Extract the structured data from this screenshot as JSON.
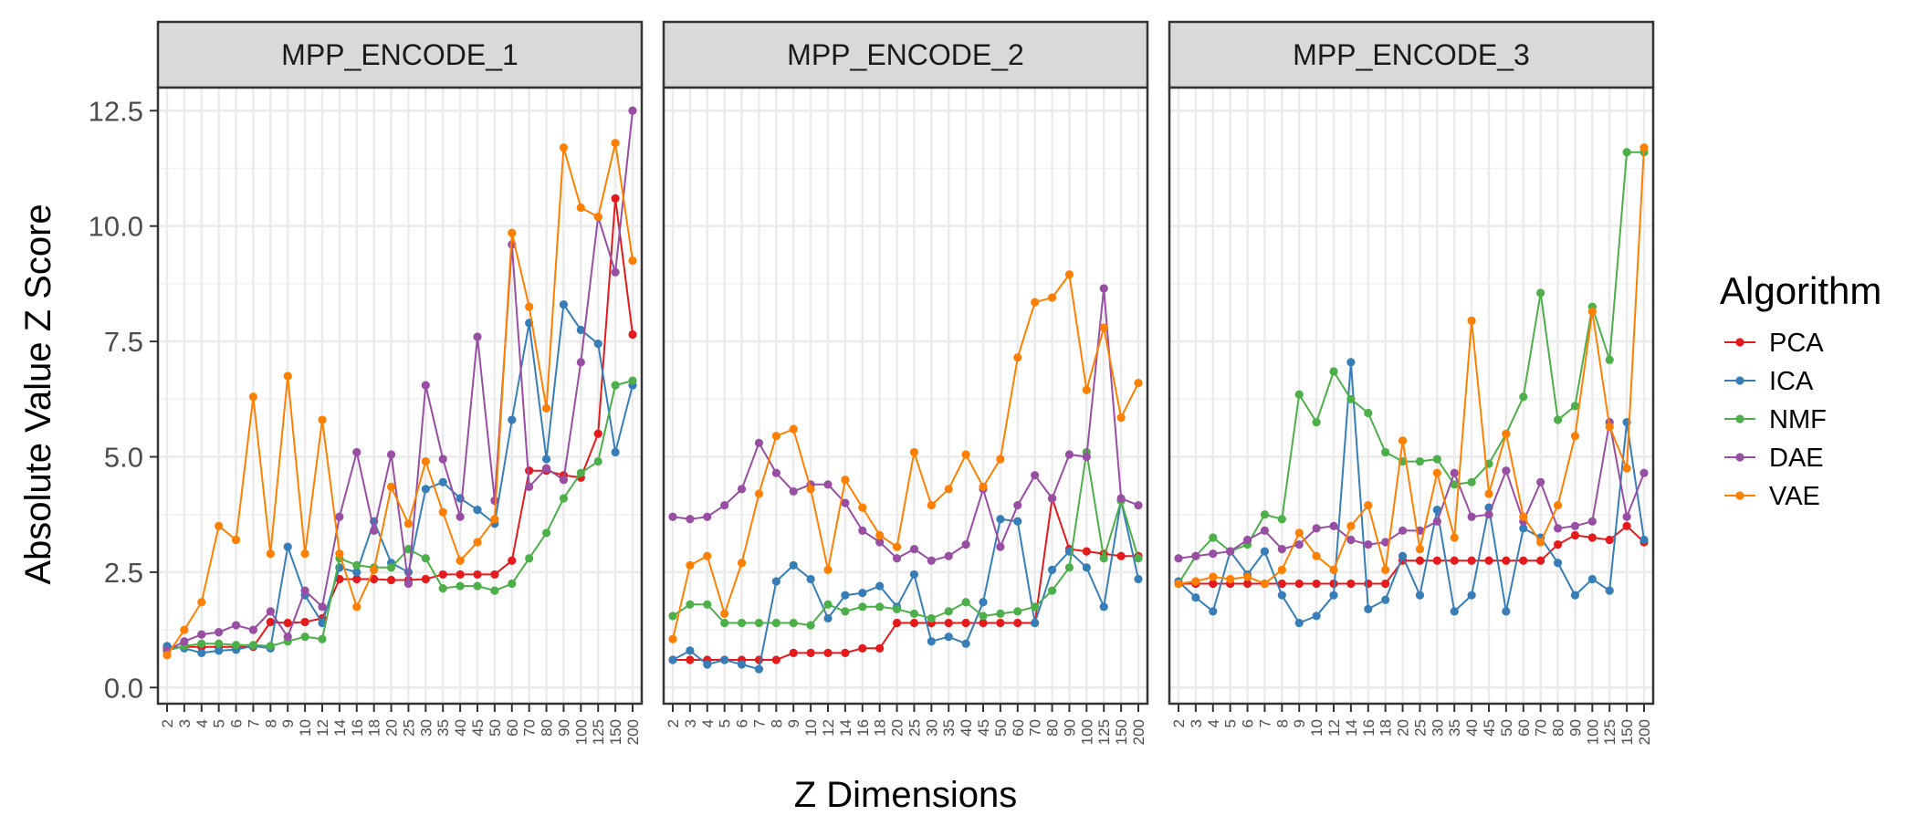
{
  "chart_data": {
    "type": "line",
    "ylabel": "Absolute Value Z Score",
    "xlabel": "Z Dimensions",
    "ylim": [
      0,
      12.5
    ],
    "yticks": [
      0.0,
      2.5,
      5.0,
      7.5,
      10.0,
      12.5
    ],
    "ytick_labels": [
      "0.0",
      "2.5",
      "5.0",
      "7.5",
      "10.0",
      "12.5"
    ],
    "grid": true,
    "legend_position": "right",
    "legend_title": "Algorithm",
    "categories": [
      "2",
      "3",
      "4",
      "5",
      "6",
      "7",
      "8",
      "9",
      "10",
      "12",
      "14",
      "16",
      "18",
      "20",
      "25",
      "30",
      "35",
      "40",
      "45",
      "50",
      "60",
      "70",
      "80",
      "90",
      "100",
      "125",
      "150",
      "200"
    ],
    "series_names": [
      "PCA",
      "ICA",
      "NMF",
      "DAE",
      "VAE"
    ],
    "series_colors": {
      "PCA": "#E41A1C",
      "ICA": "#377EB8",
      "NMF": "#4DAF4A",
      "DAE": "#984EA3",
      "VAE": "#FF7F00"
    },
    "panels": [
      {
        "title": "MPP_ENCODE_1",
        "series": [
          {
            "name": "PCA",
            "values": [
              0.85,
              0.88,
              0.88,
              0.88,
              0.88,
              0.88,
              1.42,
              1.4,
              1.42,
              1.5,
              2.35,
              2.35,
              2.35,
              2.33,
              2.33,
              2.35,
              2.45,
              2.45,
              2.45,
              2.45,
              2.75,
              4.7,
              4.7,
              4.6,
              4.55,
              5.5,
              10.6,
              7.65
            ]
          },
          {
            "name": "ICA",
            "values": [
              0.9,
              0.85,
              0.75,
              0.8,
              0.82,
              0.9,
              0.85,
              3.05,
              2.0,
              1.4,
              2.6,
              2.5,
              3.6,
              2.7,
              2.5,
              4.3,
              4.45,
              4.1,
              3.85,
              3.55,
              5.8,
              7.9,
              4.95,
              8.3,
              7.75,
              7.45,
              5.1,
              6.55
            ]
          },
          {
            "name": "NMF",
            "values": [
              0.8,
              0.9,
              0.95,
              0.95,
              0.92,
              0.92,
              0.9,
              1.0,
              1.1,
              1.05,
              2.8,
              2.65,
              2.6,
              2.6,
              3.0,
              2.8,
              2.15,
              2.2,
              2.2,
              2.1,
              2.25,
              2.8,
              3.35,
              4.1,
              4.65,
              4.9,
              6.55,
              6.65
            ]
          },
          {
            "name": "DAE",
            "values": [
              0.8,
              1.0,
              1.15,
              1.2,
              1.35,
              1.25,
              1.65,
              1.1,
              2.1,
              1.75,
              3.7,
              5.1,
              3.4,
              5.05,
              2.25,
              6.55,
              4.95,
              3.7,
              7.6,
              4.05,
              9.6,
              4.35,
              4.75,
              4.5,
              7.05,
              10.2,
              9.0,
              12.5
            ]
          },
          {
            "name": "VAE",
            "values": [
              0.7,
              1.25,
              1.85,
              3.5,
              3.2,
              6.3,
              2.9,
              6.75,
              2.9,
              5.8,
              2.9,
              1.75,
              2.55,
              4.35,
              3.55,
              4.9,
              3.8,
              2.75,
              3.15,
              3.65,
              9.85,
              8.25,
              6.05,
              11.7,
              10.4,
              10.2,
              11.8,
              9.25
            ]
          }
        ]
      },
      {
        "title": "MPP_ENCODE_2",
        "series": [
          {
            "name": "PCA",
            "values": [
              0.6,
              0.6,
              0.6,
              0.6,
              0.6,
              0.6,
              0.6,
              0.75,
              0.75,
              0.75,
              0.75,
              0.85,
              0.85,
              1.4,
              1.4,
              1.4,
              1.4,
              1.4,
              1.4,
              1.4,
              1.4,
              1.4,
              4.1,
              3.0,
              2.95,
              2.9,
              2.85,
              2.85
            ]
          },
          {
            "name": "ICA",
            "values": [
              0.6,
              0.8,
              0.5,
              0.6,
              0.5,
              0.4,
              2.3,
              2.65,
              2.35,
              1.5,
              2.0,
              2.05,
              2.2,
              1.75,
              2.45,
              1.0,
              1.1,
              0.95,
              1.85,
              3.65,
              3.6,
              1.4,
              2.55,
              2.95,
              2.6,
              1.75,
              4.05,
              2.35
            ]
          },
          {
            "name": "NMF",
            "values": [
              1.55,
              1.8,
              1.8,
              1.4,
              1.4,
              1.4,
              1.4,
              1.4,
              1.35,
              1.8,
              1.65,
              1.75,
              1.75,
              1.7,
              1.6,
              1.5,
              1.65,
              1.85,
              1.55,
              1.6,
              1.65,
              1.75,
              2.1,
              2.6,
              5.1,
              2.8,
              4.05,
              2.8
            ]
          },
          {
            "name": "DAE",
            "values": [
              3.7,
              3.65,
              3.7,
              3.95,
              4.3,
              5.3,
              4.65,
              4.25,
              4.4,
              4.4,
              4.0,
              3.4,
              3.15,
              2.8,
              3.0,
              2.75,
              2.85,
              3.1,
              4.3,
              3.05,
              3.95,
              4.6,
              4.1,
              5.05,
              5.0,
              8.65,
              4.1,
              3.95
            ]
          },
          {
            "name": "VAE",
            "values": [
              1.05,
              2.65,
              2.85,
              1.6,
              2.7,
              4.2,
              5.45,
              5.6,
              4.3,
              2.55,
              4.5,
              3.9,
              3.3,
              3.05,
              5.1,
              3.95,
              4.3,
              5.05,
              4.35,
              4.95,
              7.15,
              8.35,
              8.45,
              8.95,
              6.45,
              7.8,
              5.85,
              6.6
            ]
          }
        ]
      },
      {
        "title": "MPP_ENCODE_3",
        "series": [
          {
            "name": "PCA",
            "values": [
              2.25,
              2.25,
              2.25,
              2.25,
              2.25,
              2.25,
              2.25,
              2.25,
              2.25,
              2.25,
              2.25,
              2.25,
              2.25,
              2.75,
              2.75,
              2.75,
              2.75,
              2.75,
              2.75,
              2.75,
              2.75,
              2.75,
              3.1,
              3.3,
              3.25,
              3.2,
              3.5,
              3.15
            ]
          },
          {
            "name": "ICA",
            "values": [
              2.3,
              1.95,
              1.65,
              2.95,
              2.45,
              2.95,
              2.0,
              1.4,
              1.55,
              2.0,
              7.05,
              1.7,
              1.9,
              2.85,
              2.0,
              3.85,
              1.65,
              2.0,
              3.9,
              1.65,
              3.45,
              3.25,
              2.7,
              2.0,
              2.35,
              2.1,
              5.75,
              3.2
            ]
          },
          {
            "name": "NMF",
            "values": [
              2.25,
              2.85,
              3.25,
              2.95,
              3.1,
              3.75,
              3.65,
              6.35,
              5.75,
              6.85,
              6.25,
              5.95,
              5.1,
              4.9,
              4.9,
              4.95,
              4.4,
              4.45,
              4.85,
              5.5,
              6.3,
              8.55,
              5.8,
              6.1,
              8.25,
              7.1,
              11.6,
              11.6
            ]
          },
          {
            "name": "DAE",
            "values": [
              2.8,
              2.85,
              2.9,
              2.95,
              3.2,
              3.4,
              3.0,
              3.1,
              3.45,
              3.5,
              3.2,
              3.1,
              3.15,
              3.4,
              3.4,
              3.6,
              4.65,
              3.7,
              3.75,
              4.7,
              3.6,
              4.45,
              3.45,
              3.5,
              3.6,
              5.75,
              3.7,
              4.65
            ]
          },
          {
            "name": "VAE",
            "values": [
              2.25,
              2.3,
              2.4,
              2.35,
              2.4,
              2.25,
              2.55,
              3.35,
              2.85,
              2.55,
              3.5,
              3.95,
              2.55,
              5.35,
              3.0,
              4.65,
              3.25,
              7.95,
              4.2,
              5.5,
              3.7,
              3.15,
              3.95,
              5.45,
              8.15,
              5.65,
              4.75,
              11.7
            ]
          }
        ]
      }
    ]
  }
}
